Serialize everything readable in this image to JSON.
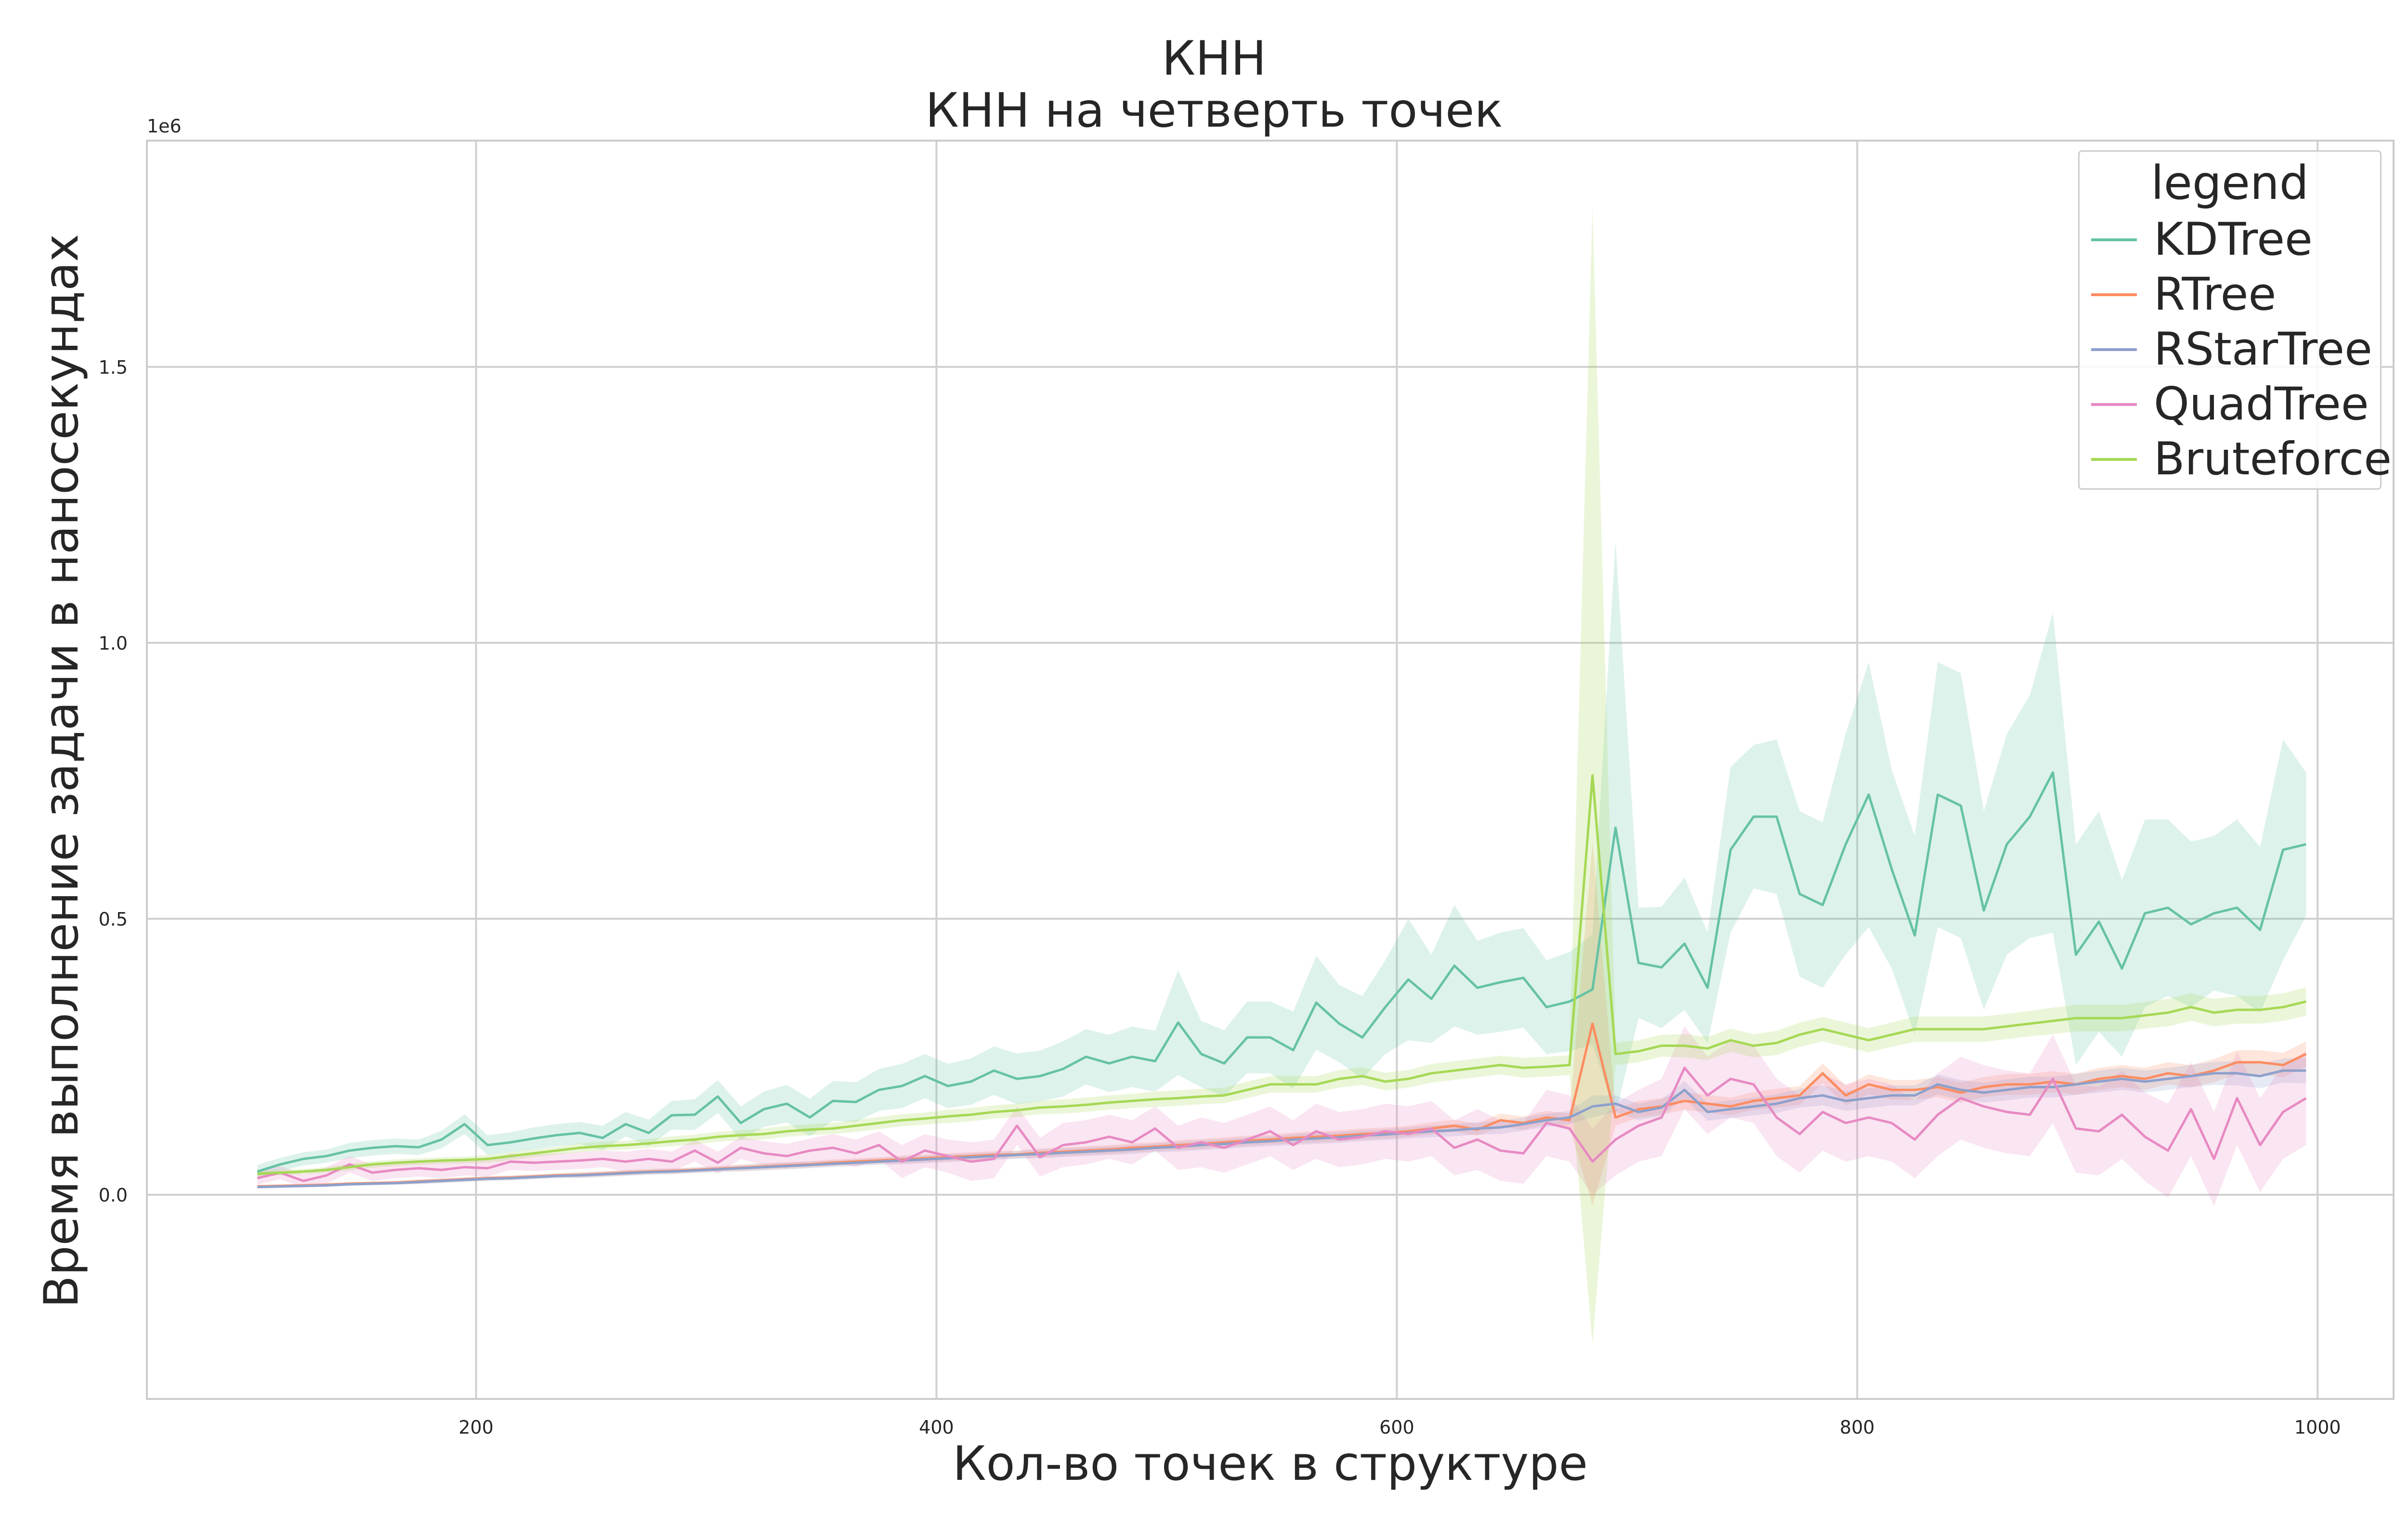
{
  "chart_data": {
    "type": "line",
    "title": "КНН",
    "subtitle": "КНН на четверть точек",
    "xlabel": "Кол-во точек в структуре",
    "ylabel": "Время выполнение задачи в наносекундах",
    "y_scale_label": "1e6",
    "xlim": [
      57,
      1033
    ],
    "ylim": [
      -0.37,
      1.91
    ],
    "y_unit_multiplier": 1000000,
    "xticks": [
      200,
      400,
      600,
      800,
      1000
    ],
    "xtick_labels": [
      "200",
      "400",
      "600",
      "800",
      "1000"
    ],
    "yticks": [
      0.0,
      0.5,
      1.0,
      1.5
    ],
    "ytick_labels": [
      "0.0",
      "0.5",
      "1.0",
      "1.5"
    ],
    "grid": true,
    "legend": {
      "title": "legend",
      "placement": "top-right"
    },
    "x": [
      105,
      115,
      125,
      135,
      145,
      155,
      165,
      175,
      185,
      195,
      205,
      215,
      225,
      235,
      245,
      255,
      265,
      275,
      285,
      295,
      305,
      315,
      325,
      335,
      345,
      355,
      365,
      375,
      385,
      395,
      405,
      415,
      425,
      435,
      445,
      455,
      465,
      475,
      485,
      495,
      505,
      515,
      525,
      535,
      545,
      555,
      565,
      575,
      585,
      595,
      605,
      615,
      625,
      635,
      645,
      655,
      665,
      675,
      685,
      695,
      705,
      715,
      725,
      735,
      745,
      755,
      765,
      775,
      785,
      795,
      805,
      815,
      825,
      835,
      845,
      855,
      865,
      875,
      885,
      895,
      905,
      915,
      925,
      935,
      945,
      955,
      965,
      975,
      985,
      995
    ],
    "series": [
      {
        "name": "KDTree",
        "color": "#66c2a5",
        "values": [
          0.042,
          0.055,
          0.065,
          0.07,
          0.08,
          0.085,
          0.088,
          0.086,
          0.1,
          0.128,
          0.09,
          0.095,
          0.102,
          0.108,
          0.112,
          0.103,
          0.128,
          0.112,
          0.144,
          0.145,
          0.178,
          0.13,
          0.155,
          0.165,
          0.14,
          0.17,
          0.168,
          0.19,
          0.197,
          0.215,
          0.197,
          0.205,
          0.225,
          0.21,
          0.215,
          0.228,
          0.25,
          0.238,
          0.25,
          0.242,
          0.312,
          0.255,
          0.238,
          0.285,
          0.285,
          0.262,
          0.348,
          0.31,
          0.285,
          0.34,
          0.39,
          0.355,
          0.415,
          0.375,
          0.385,
          0.393,
          0.34,
          0.35,
          0.372,
          0.665,
          0.42,
          0.412,
          0.455,
          0.375,
          0.625,
          0.685,
          0.685,
          0.545,
          0.525,
          0.635,
          0.725,
          0.59,
          0.47,
          0.725,
          0.705,
          0.515,
          0.635,
          0.685,
          0.765,
          0.435,
          0.495,
          0.41,
          0.51,
          0.52,
          0.49,
          0.51,
          0.52,
          0.48,
          0.625,
          0.635
        ],
        "band_halfwidth": [
          0.012,
          0.012,
          0.012,
          0.012,
          0.014,
          0.014,
          0.014,
          0.014,
          0.016,
          0.018,
          0.018,
          0.018,
          0.02,
          0.02,
          0.02,
          0.022,
          0.022,
          0.024,
          0.026,
          0.028,
          0.03,
          0.03,
          0.032,
          0.034,
          0.034,
          0.036,
          0.036,
          0.038,
          0.04,
          0.04,
          0.04,
          0.042,
          0.044,
          0.046,
          0.046,
          0.05,
          0.05,
          0.052,
          0.055,
          0.055,
          0.095,
          0.06,
          0.06,
          0.065,
          0.065,
          0.07,
          0.085,
          0.07,
          0.075,
          0.085,
          0.11,
          0.08,
          0.11,
          0.085,
          0.09,
          0.09,
          0.085,
          0.09,
          0.1,
          0.52,
          0.1,
          0.11,
          0.12,
          0.1,
          0.15,
          0.13,
          0.14,
          0.15,
          0.15,
          0.2,
          0.24,
          0.18,
          0.18,
          0.24,
          0.24,
          0.18,
          0.2,
          0.22,
          0.29,
          0.2,
          0.2,
          0.16,
          0.17,
          0.16,
          0.15,
          0.14,
          0.16,
          0.15,
          0.2,
          0.13
        ]
      },
      {
        "name": "RTree",
        "color": "#fc8d62",
        "values": [
          0.015,
          0.016,
          0.017,
          0.018,
          0.02,
          0.021,
          0.022,
          0.024,
          0.026,
          0.028,
          0.03,
          0.031,
          0.033,
          0.035,
          0.036,
          0.038,
          0.04,
          0.042,
          0.043,
          0.045,
          0.047,
          0.049,
          0.051,
          0.053,
          0.055,
          0.058,
          0.06,
          0.062,
          0.064,
          0.066,
          0.068,
          0.07,
          0.072,
          0.073,
          0.076,
          0.078,
          0.08,
          0.082,
          0.085,
          0.087,
          0.09,
          0.092,
          0.095,
          0.098,
          0.1,
          0.103,
          0.105,
          0.107,
          0.11,
          0.112,
          0.115,
          0.12,
          0.125,
          0.118,
          0.135,
          0.13,
          0.14,
          0.135,
          0.31,
          0.14,
          0.155,
          0.16,
          0.17,
          0.165,
          0.16,
          0.17,
          0.175,
          0.18,
          0.22,
          0.18,
          0.2,
          0.19,
          0.19,
          0.195,
          0.185,
          0.195,
          0.2,
          0.2,
          0.205,
          0.2,
          0.21,
          0.215,
          0.21,
          0.22,
          0.215,
          0.225,
          0.24,
          0.24,
          0.235,
          0.255
        ],
        "band_halfwidth": [
          0.003,
          0.003,
          0.003,
          0.003,
          0.003,
          0.003,
          0.003,
          0.004,
          0.004,
          0.004,
          0.004,
          0.004,
          0.004,
          0.004,
          0.005,
          0.005,
          0.005,
          0.005,
          0.005,
          0.005,
          0.005,
          0.006,
          0.006,
          0.006,
          0.006,
          0.006,
          0.006,
          0.006,
          0.007,
          0.007,
          0.007,
          0.007,
          0.007,
          0.007,
          0.008,
          0.008,
          0.008,
          0.008,
          0.008,
          0.008,
          0.009,
          0.009,
          0.009,
          0.009,
          0.009,
          0.01,
          0.01,
          0.01,
          0.01,
          0.01,
          0.01,
          0.011,
          0.011,
          0.011,
          0.012,
          0.012,
          0.012,
          0.012,
          0.33,
          0.015,
          0.015,
          0.015,
          0.016,
          0.016,
          0.016,
          0.016,
          0.017,
          0.017,
          0.018,
          0.018,
          0.018,
          0.018,
          0.018,
          0.018,
          0.018,
          0.018,
          0.019,
          0.019,
          0.019,
          0.019,
          0.02,
          0.02,
          0.02,
          0.02,
          0.02,
          0.021,
          0.022,
          0.022,
          0.022,
          0.023
        ]
      },
      {
        "name": "RStarTree",
        "color": "#8da0cb",
        "values": [
          0.014,
          0.015,
          0.016,
          0.017,
          0.019,
          0.02,
          0.021,
          0.023,
          0.025,
          0.027,
          0.029,
          0.03,
          0.032,
          0.034,
          0.035,
          0.037,
          0.039,
          0.041,
          0.042,
          0.044,
          0.046,
          0.048,
          0.05,
          0.052,
          0.054,
          0.056,
          0.058,
          0.06,
          0.062,
          0.064,
          0.066,
          0.068,
          0.07,
          0.072,
          0.074,
          0.076,
          0.078,
          0.08,
          0.082,
          0.085,
          0.087,
          0.09,
          0.092,
          0.095,
          0.097,
          0.1,
          0.102,
          0.104,
          0.107,
          0.109,
          0.112,
          0.115,
          0.117,
          0.12,
          0.122,
          0.128,
          0.135,
          0.14,
          0.16,
          0.165,
          0.15,
          0.158,
          0.19,
          0.15,
          0.155,
          0.16,
          0.165,
          0.175,
          0.18,
          0.17,
          0.175,
          0.18,
          0.18,
          0.2,
          0.19,
          0.185,
          0.19,
          0.195,
          0.195,
          0.2,
          0.205,
          0.21,
          0.205,
          0.21,
          0.215,
          0.22,
          0.22,
          0.215,
          0.225,
          0.225
        ],
        "band_halfwidth": [
          0.003,
          0.003,
          0.003,
          0.003,
          0.003,
          0.003,
          0.003,
          0.004,
          0.004,
          0.004,
          0.004,
          0.004,
          0.004,
          0.004,
          0.005,
          0.005,
          0.005,
          0.005,
          0.005,
          0.005,
          0.005,
          0.006,
          0.006,
          0.006,
          0.006,
          0.006,
          0.006,
          0.006,
          0.007,
          0.007,
          0.007,
          0.007,
          0.007,
          0.007,
          0.008,
          0.008,
          0.008,
          0.008,
          0.008,
          0.008,
          0.009,
          0.009,
          0.009,
          0.009,
          0.009,
          0.01,
          0.01,
          0.01,
          0.01,
          0.01,
          0.01,
          0.011,
          0.011,
          0.011,
          0.012,
          0.012,
          0.012,
          0.012,
          0.02,
          0.015,
          0.015,
          0.015,
          0.016,
          0.016,
          0.016,
          0.016,
          0.017,
          0.017,
          0.018,
          0.018,
          0.018,
          0.018,
          0.018,
          0.018,
          0.018,
          0.018,
          0.019,
          0.019,
          0.019,
          0.019,
          0.02,
          0.02,
          0.02,
          0.02,
          0.02,
          0.021,
          0.022,
          0.022,
          0.022,
          0.023
        ]
      },
      {
        "name": "QuadTree",
        "color": "#e78ac3",
        "values": [
          0.03,
          0.04,
          0.025,
          0.035,
          0.055,
          0.04,
          0.045,
          0.048,
          0.045,
          0.05,
          0.048,
          0.06,
          0.058,
          0.06,
          0.062,
          0.065,
          0.06,
          0.065,
          0.06,
          0.08,
          0.058,
          0.085,
          0.075,
          0.07,
          0.08,
          0.085,
          0.075,
          0.09,
          0.06,
          0.08,
          0.07,
          0.06,
          0.065,
          0.125,
          0.068,
          0.09,
          0.095,
          0.105,
          0.095,
          0.12,
          0.085,
          0.095,
          0.085,
          0.1,
          0.115,
          0.09,
          0.115,
          0.1,
          0.105,
          0.115,
          0.11,
          0.12,
          0.085,
          0.1,
          0.08,
          0.075,
          0.13,
          0.12,
          0.06,
          0.1,
          0.125,
          0.14,
          0.23,
          0.18,
          0.21,
          0.2,
          0.14,
          0.11,
          0.15,
          0.13,
          0.14,
          0.13,
          0.1,
          0.145,
          0.175,
          0.16,
          0.15,
          0.145,
          0.21,
          0.12,
          0.115,
          0.145,
          0.105,
          0.08,
          0.155,
          0.065,
          0.175,
          0.09,
          0.15,
          0.175
        ],
        "band_halfwidth": [
          0.012,
          0.012,
          0.012,
          0.015,
          0.015,
          0.015,
          0.015,
          0.015,
          0.015,
          0.015,
          0.015,
          0.015,
          0.015,
          0.015,
          0.015,
          0.015,
          0.018,
          0.018,
          0.018,
          0.02,
          0.02,
          0.02,
          0.022,
          0.022,
          0.022,
          0.025,
          0.025,
          0.025,
          0.03,
          0.03,
          0.03,
          0.035,
          0.035,
          0.035,
          0.035,
          0.04,
          0.04,
          0.04,
          0.04,
          0.04,
          0.04,
          0.045,
          0.045,
          0.045,
          0.045,
          0.045,
          0.05,
          0.05,
          0.05,
          0.05,
          0.05,
          0.05,
          0.05,
          0.055,
          0.055,
          0.055,
          0.06,
          0.06,
          0.06,
          0.065,
          0.065,
          0.07,
          0.075,
          0.07,
          0.07,
          0.07,
          0.07,
          0.07,
          0.07,
          0.07,
          0.07,
          0.07,
          0.07,
          0.075,
          0.075,
          0.075,
          0.075,
          0.075,
          0.08,
          0.08,
          0.08,
          0.08,
          0.08,
          0.085,
          0.085,
          0.085,
          0.085,
          0.085,
          0.085,
          0.085
        ]
      },
      {
        "name": "Bruteforce",
        "color": "#a6d854",
        "values": [
          0.038,
          0.04,
          0.042,
          0.045,
          0.05,
          0.055,
          0.058,
          0.06,
          0.062,
          0.063,
          0.065,
          0.07,
          0.075,
          0.08,
          0.085,
          0.088,
          0.09,
          0.093,
          0.097,
          0.1,
          0.105,
          0.108,
          0.11,
          0.115,
          0.118,
          0.12,
          0.125,
          0.13,
          0.135,
          0.138,
          0.142,
          0.145,
          0.15,
          0.153,
          0.158,
          0.16,
          0.163,
          0.167,
          0.17,
          0.173,
          0.175,
          0.178,
          0.18,
          0.19,
          0.2,
          0.2,
          0.2,
          0.21,
          0.215,
          0.205,
          0.21,
          0.22,
          0.225,
          0.23,
          0.235,
          0.23,
          0.232,
          0.235,
          0.76,
          0.255,
          0.26,
          0.27,
          0.27,
          0.265,
          0.28,
          0.27,
          0.275,
          0.29,
          0.3,
          0.29,
          0.28,
          0.29,
          0.3,
          0.3,
          0.3,
          0.3,
          0.305,
          0.31,
          0.315,
          0.32,
          0.32,
          0.32,
          0.325,
          0.33,
          0.34,
          0.33,
          0.335,
          0.335,
          0.34,
          0.35
        ],
        "band_halfwidth": [
          0.005,
          0.005,
          0.005,
          0.005,
          0.006,
          0.006,
          0.006,
          0.006,
          0.006,
          0.006,
          0.007,
          0.007,
          0.007,
          0.007,
          0.008,
          0.008,
          0.008,
          0.008,
          0.009,
          0.009,
          0.009,
          0.009,
          0.01,
          0.01,
          0.01,
          0.01,
          0.011,
          0.011,
          0.011,
          0.011,
          0.012,
          0.012,
          0.012,
          0.012,
          0.012,
          0.013,
          0.013,
          0.013,
          0.013,
          0.014,
          0.014,
          0.014,
          0.014,
          0.015,
          0.015,
          0.015,
          0.015,
          0.016,
          0.016,
          0.016,
          0.016,
          0.017,
          0.017,
          0.017,
          0.017,
          0.018,
          0.018,
          0.018,
          1.03,
          0.02,
          0.02,
          0.02,
          0.021,
          0.021,
          0.021,
          0.021,
          0.022,
          0.022,
          0.022,
          0.022,
          0.022,
          0.022,
          0.023,
          0.023,
          0.023,
          0.023,
          0.023,
          0.023,
          0.024,
          0.024,
          0.024,
          0.024,
          0.024,
          0.025,
          0.025,
          0.025,
          0.025,
          0.025,
          0.025,
          0.026
        ]
      }
    ]
  }
}
